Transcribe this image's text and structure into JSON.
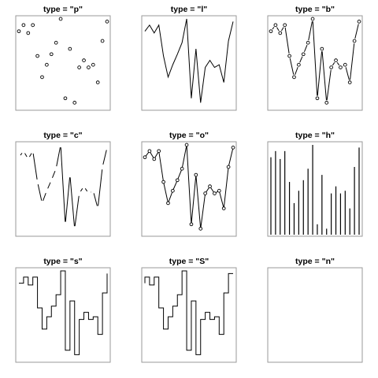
{
  "chart_data": {
    "type": "line",
    "shared_series": {
      "x": [
        1,
        2,
        3,
        4,
        5,
        6,
        7,
        8,
        9,
        10,
        11,
        12,
        13,
        14,
        15,
        16,
        17,
        18,
        19,
        20
      ],
      "y": [
        0.86,
        0.93,
        0.84,
        0.93,
        0.58,
        0.34,
        0.48,
        0.6,
        0.73,
        1.0,
        0.1,
        0.66,
        0.05,
        0.45,
        0.53,
        0.45,
        0.48,
        0.28,
        0.75,
        0.97
      ]
    },
    "ylim": [
      0,
      1
    ],
    "axes_visible": false,
    "panels": [
      {
        "type": "p",
        "title": "type = \"p\""
      },
      {
        "type": "l",
        "title": "type = \"l\""
      },
      {
        "type": "b",
        "title": "type = \"b\""
      },
      {
        "type": "c",
        "title": "type = \"c\""
      },
      {
        "type": "o",
        "title": "type = \"o\""
      },
      {
        "type": "h",
        "title": "type = \"h\""
      },
      {
        "type": "s",
        "title": "type = \"s\""
      },
      {
        "type": "S",
        "title": "type = \"S\""
      },
      {
        "type": "n",
        "title": "type = \"n\""
      }
    ]
  },
  "colors": {
    "frame": "#999999",
    "ink": "#000000",
    "background": "#ffffff"
  }
}
